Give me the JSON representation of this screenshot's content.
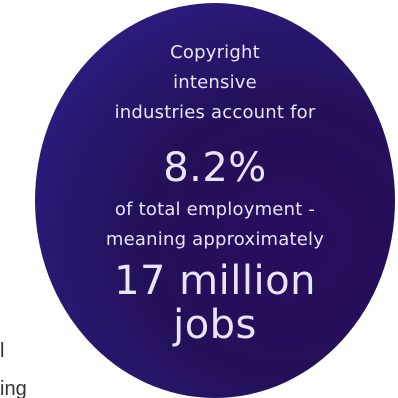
{
  "background_text": {
    "line1": "l",
    "line2": "ing"
  },
  "stat_circle": {
    "line1": "Copyright",
    "line2": "intensive",
    "line3": "industries account for",
    "percentage": "8.2%",
    "line4": "of total employment -",
    "line5": "meaning approximately",
    "jobs_number": "17 million",
    "jobs_label": "jobs"
  },
  "colors": {
    "circle_primary": "#241058",
    "text": "#e9e4ff"
  }
}
